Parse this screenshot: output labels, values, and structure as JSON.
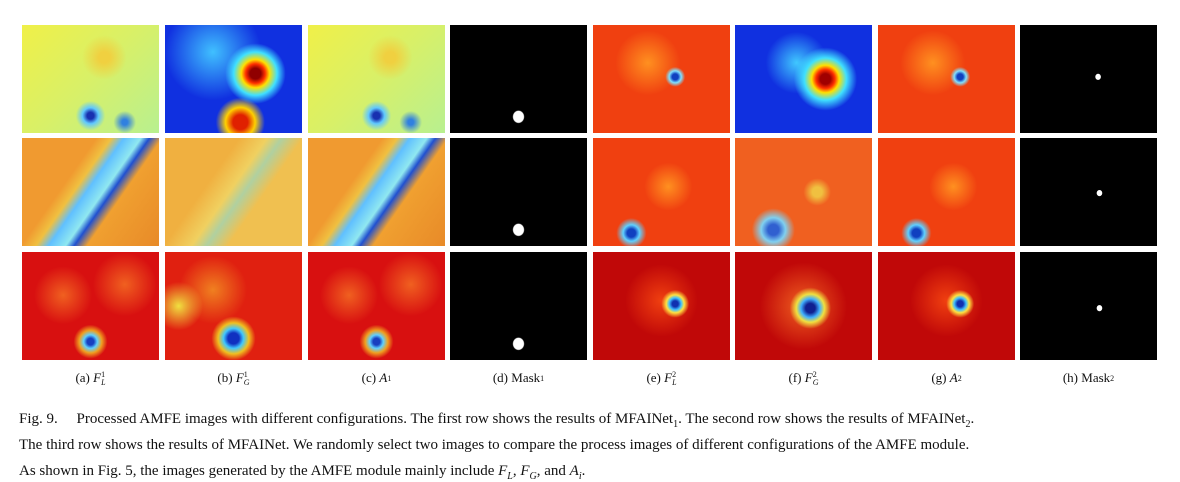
{
  "figure": {
    "columns": [
      {
        "tag": "(a)",
        "symbol": "F",
        "sub": "L",
        "sup": "1"
      },
      {
        "tag": "(b)",
        "symbol": "F",
        "sub": "G",
        "sup": "1"
      },
      {
        "tag": "(c)",
        "symbol": "A",
        "sup": "1"
      },
      {
        "tag": "(d)",
        "symbol": "Mask",
        "sup": "1"
      },
      {
        "tag": "(e)",
        "symbol": "F",
        "sub": "L",
        "sup": "2"
      },
      {
        "tag": "(f)",
        "symbol": "F",
        "sub": "G",
        "sup": "2"
      },
      {
        "tag": "(g)",
        "symbol": "A",
        "sup": "2"
      },
      {
        "tag": "(h)",
        "symbol": "Mask",
        "sup": "2"
      }
    ]
  },
  "caption": {
    "label": "Fig. 9.",
    "lines": [
      [
        "Processed AMFE images with different configurations. The first row shows the results of MFAINet",
        "1",
        ". The second row shows the results of MFAINet",
        "2",
        "."
      ],
      [
        "The third row shows the results of MFAINet. We randomly select two images to compare the process images of different configurations of the AMFE module."
      ],
      [
        "As shown in Fig. 5, the images generated by the AMFE module mainly include ",
        "F",
        "L",
        ", ",
        "F",
        "G",
        ", and ",
        "A",
        "i",
        "."
      ]
    ]
  }
}
